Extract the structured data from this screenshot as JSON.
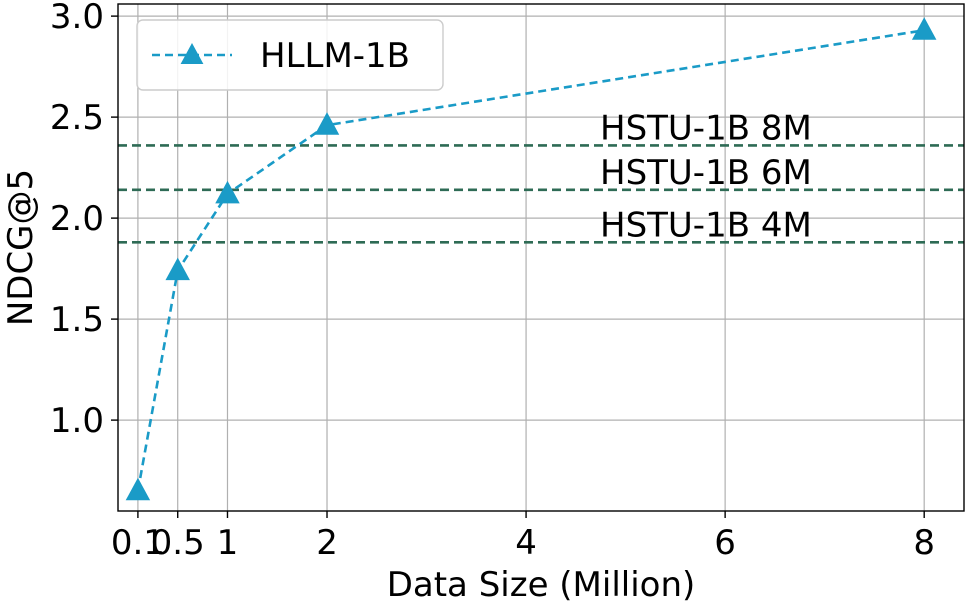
{
  "chart_data": {
    "type": "line",
    "title": "",
    "xlabel": "Data Size (Million)",
    "ylabel": "NDCG@5",
    "x": [
      0.1,
      0.5,
      1,
      2,
      4,
      6,
      8
    ],
    "x_ticks": [
      0.1,
      0.5,
      1,
      2,
      4,
      6,
      8
    ],
    "x_tick_labels": [
      "0.1",
      "0.5",
      "1",
      "2",
      "4",
      "6",
      "8"
    ],
    "y_ticks": [
      1.0,
      1.5,
      2.0,
      2.5,
      3.0
    ],
    "y_tick_labels": [
      "1.0",
      "1.5",
      "2.0",
      "2.5",
      "3.0"
    ],
    "xlim": [
      -0.1,
      8.4
    ],
    "ylim": [
      0.55,
      3.06
    ],
    "grid": true,
    "legend_position": "top-left",
    "series": [
      {
        "name": "HLLM-1B",
        "x": [
          0.1,
          0.5,
          1,
          2,
          8
        ],
        "values": [
          0.65,
          1.74,
          2.12,
          2.46,
          2.93
        ],
        "color": "#1a9bc7",
        "line_style": "dashed",
        "marker": "triangle-up"
      }
    ],
    "reference_lines": [
      {
        "label": "HSTU-1B 8M",
        "value": 2.36,
        "color": "#2e6b55",
        "line_style": "dashed"
      },
      {
        "label": "HSTU-1B 6M",
        "value": 2.14,
        "color": "#2e6b55",
        "line_style": "dashed"
      },
      {
        "label": "HSTU-1B 4M",
        "value": 1.88,
        "color": "#2e6b55",
        "line_style": "dashed"
      }
    ]
  }
}
